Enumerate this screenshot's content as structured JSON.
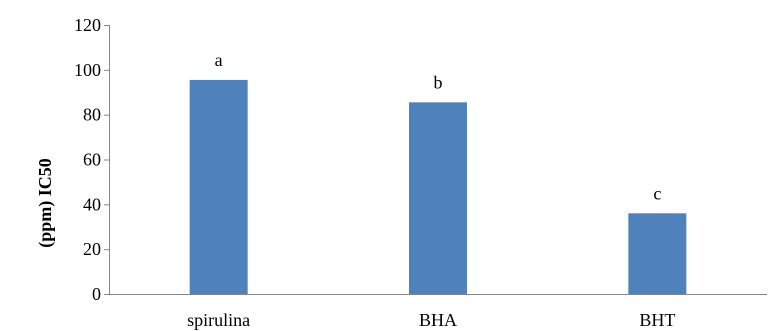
{
  "chart_data": {
    "type": "bar",
    "categories": [
      "spirulina",
      "BHA",
      "BHT"
    ],
    "values": [
      95.5,
      85.5,
      36
    ],
    "bar_labels": [
      "a",
      "b",
      "c"
    ],
    "title": "",
    "xlabel": "",
    "ylabel": "(ppm) IC50",
    "ylim": [
      0,
      120
    ],
    "yticks": [
      0,
      20,
      40,
      60,
      80,
      100,
      120
    ],
    "grid": false,
    "legend": "none",
    "bar_color": "#4f81bd",
    "axis_color": "#868686"
  }
}
